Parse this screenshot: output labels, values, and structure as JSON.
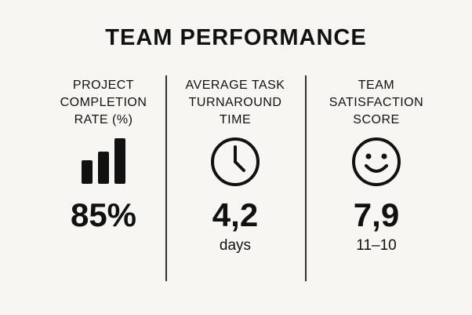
{
  "title": "TEAM PERFORMANCE",
  "metrics": [
    {
      "label_lines": [
        "PROJECT",
        "COMPLETION",
        "RATE (%)"
      ],
      "icon": "bar-chart-icon",
      "value": "85%",
      "sub": ""
    },
    {
      "label_lines": [
        "AVERAGE TASK",
        "TURNAROUND",
        "TIME"
      ],
      "icon": "clock-icon",
      "value": "4,2",
      "sub": "days"
    },
    {
      "label_lines": [
        "TEAM",
        "SATISFACTION",
        "SCORE"
      ],
      "icon": "smiley-face-icon",
      "value": "7,9",
      "sub": "11–10"
    }
  ],
  "colors": {
    "background": "#f7f6f2",
    "ink": "#111111"
  }
}
